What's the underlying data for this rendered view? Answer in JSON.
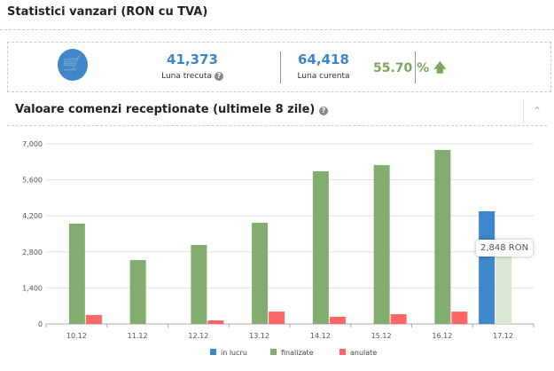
{
  "header": {
    "title": "Statistici vanzari (RON cu TVA)"
  },
  "stats": {
    "cart_icon": "cart-icon",
    "last_value": "41,373",
    "last_label": "Luna trecuta",
    "current_value": "64,418",
    "current_label": "Luna curenta",
    "change": "55.70 %",
    "change_icon": "arrow-up-icon",
    "help": "?"
  },
  "section": {
    "title": "Valoare comenzi receptionate (ultimele 8 zile)",
    "collapse": "⌃"
  },
  "tooltip": "2,848 RON",
  "chart_data": {
    "type": "bar",
    "categories": [
      "10.12",
      "11.12",
      "12.12",
      "13.12",
      "14.12",
      "15.12",
      "16.12",
      "17.12"
    ],
    "series": [
      {
        "name": "in lucru",
        "color": "#3f87cc",
        "values": [
          0,
          0,
          0,
          0,
          0,
          0,
          0,
          4380
        ]
      },
      {
        "name": "finalizate",
        "color": "#82ad6e",
        "values": [
          3900,
          2480,
          3070,
          3930,
          5930,
          6170,
          6760,
          2848
        ]
      },
      {
        "name": "anulate",
        "color": "#ff6666",
        "values": [
          350,
          0,
          140,
          480,
          280,
          380,
          480,
          0
        ]
      }
    ],
    "yticks": [
      "0",
      "1,400",
      "2,800",
      "4,200",
      "5,600",
      "7,000"
    ],
    "ylim": [
      0,
      7000
    ],
    "grid": true,
    "legend": "bottom"
  }
}
